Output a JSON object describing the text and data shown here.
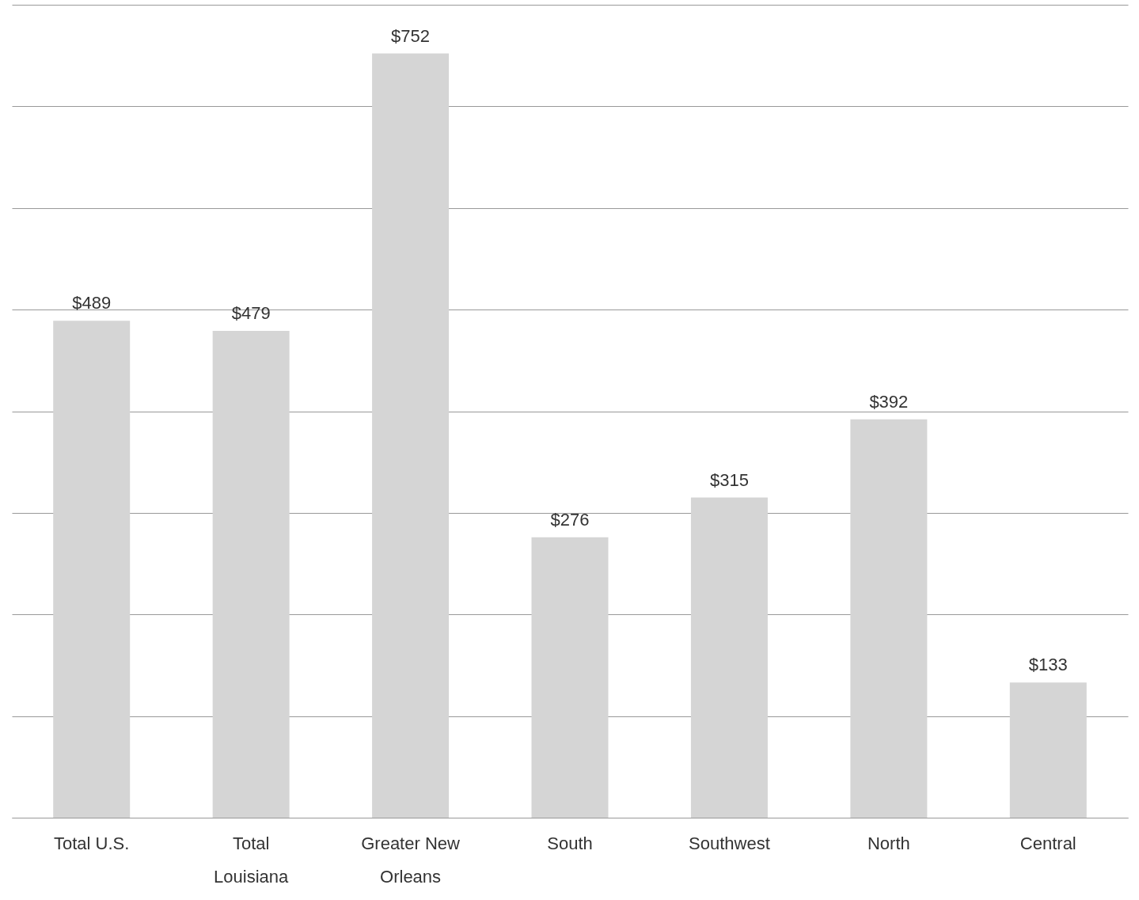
{
  "chart_data": {
    "type": "bar",
    "categories": [
      "Total U.S.",
      "Total Louisiana",
      "Greater New Orleans",
      "South",
      "Southwest",
      "North",
      "Central"
    ],
    "values": [
      489,
      479,
      752,
      276,
      315,
      392,
      133
    ],
    "value_labels": [
      "$489",
      "$479",
      "$752",
      "$276",
      "$315",
      "$392",
      "$133"
    ],
    "color": "#d5d5d5",
    "ylim": [
      0,
      800
    ],
    "yticks": [
      {
        "value": 0,
        "label": null
      },
      {
        "value": 100,
        "label": null
      },
      {
        "value": 200,
        "label": null
      },
      {
        "value": 300,
        "label": null
      },
      {
        "value": 400,
        "label": null
      },
      {
        "value": 500,
        "label": null
      },
      {
        "value": 600,
        "label": null
      },
      {
        "value": 700,
        "label": null
      },
      {
        "value": 800,
        "label": null
      }
    ],
    "grid": "y",
    "tick_labels": "x"
  }
}
